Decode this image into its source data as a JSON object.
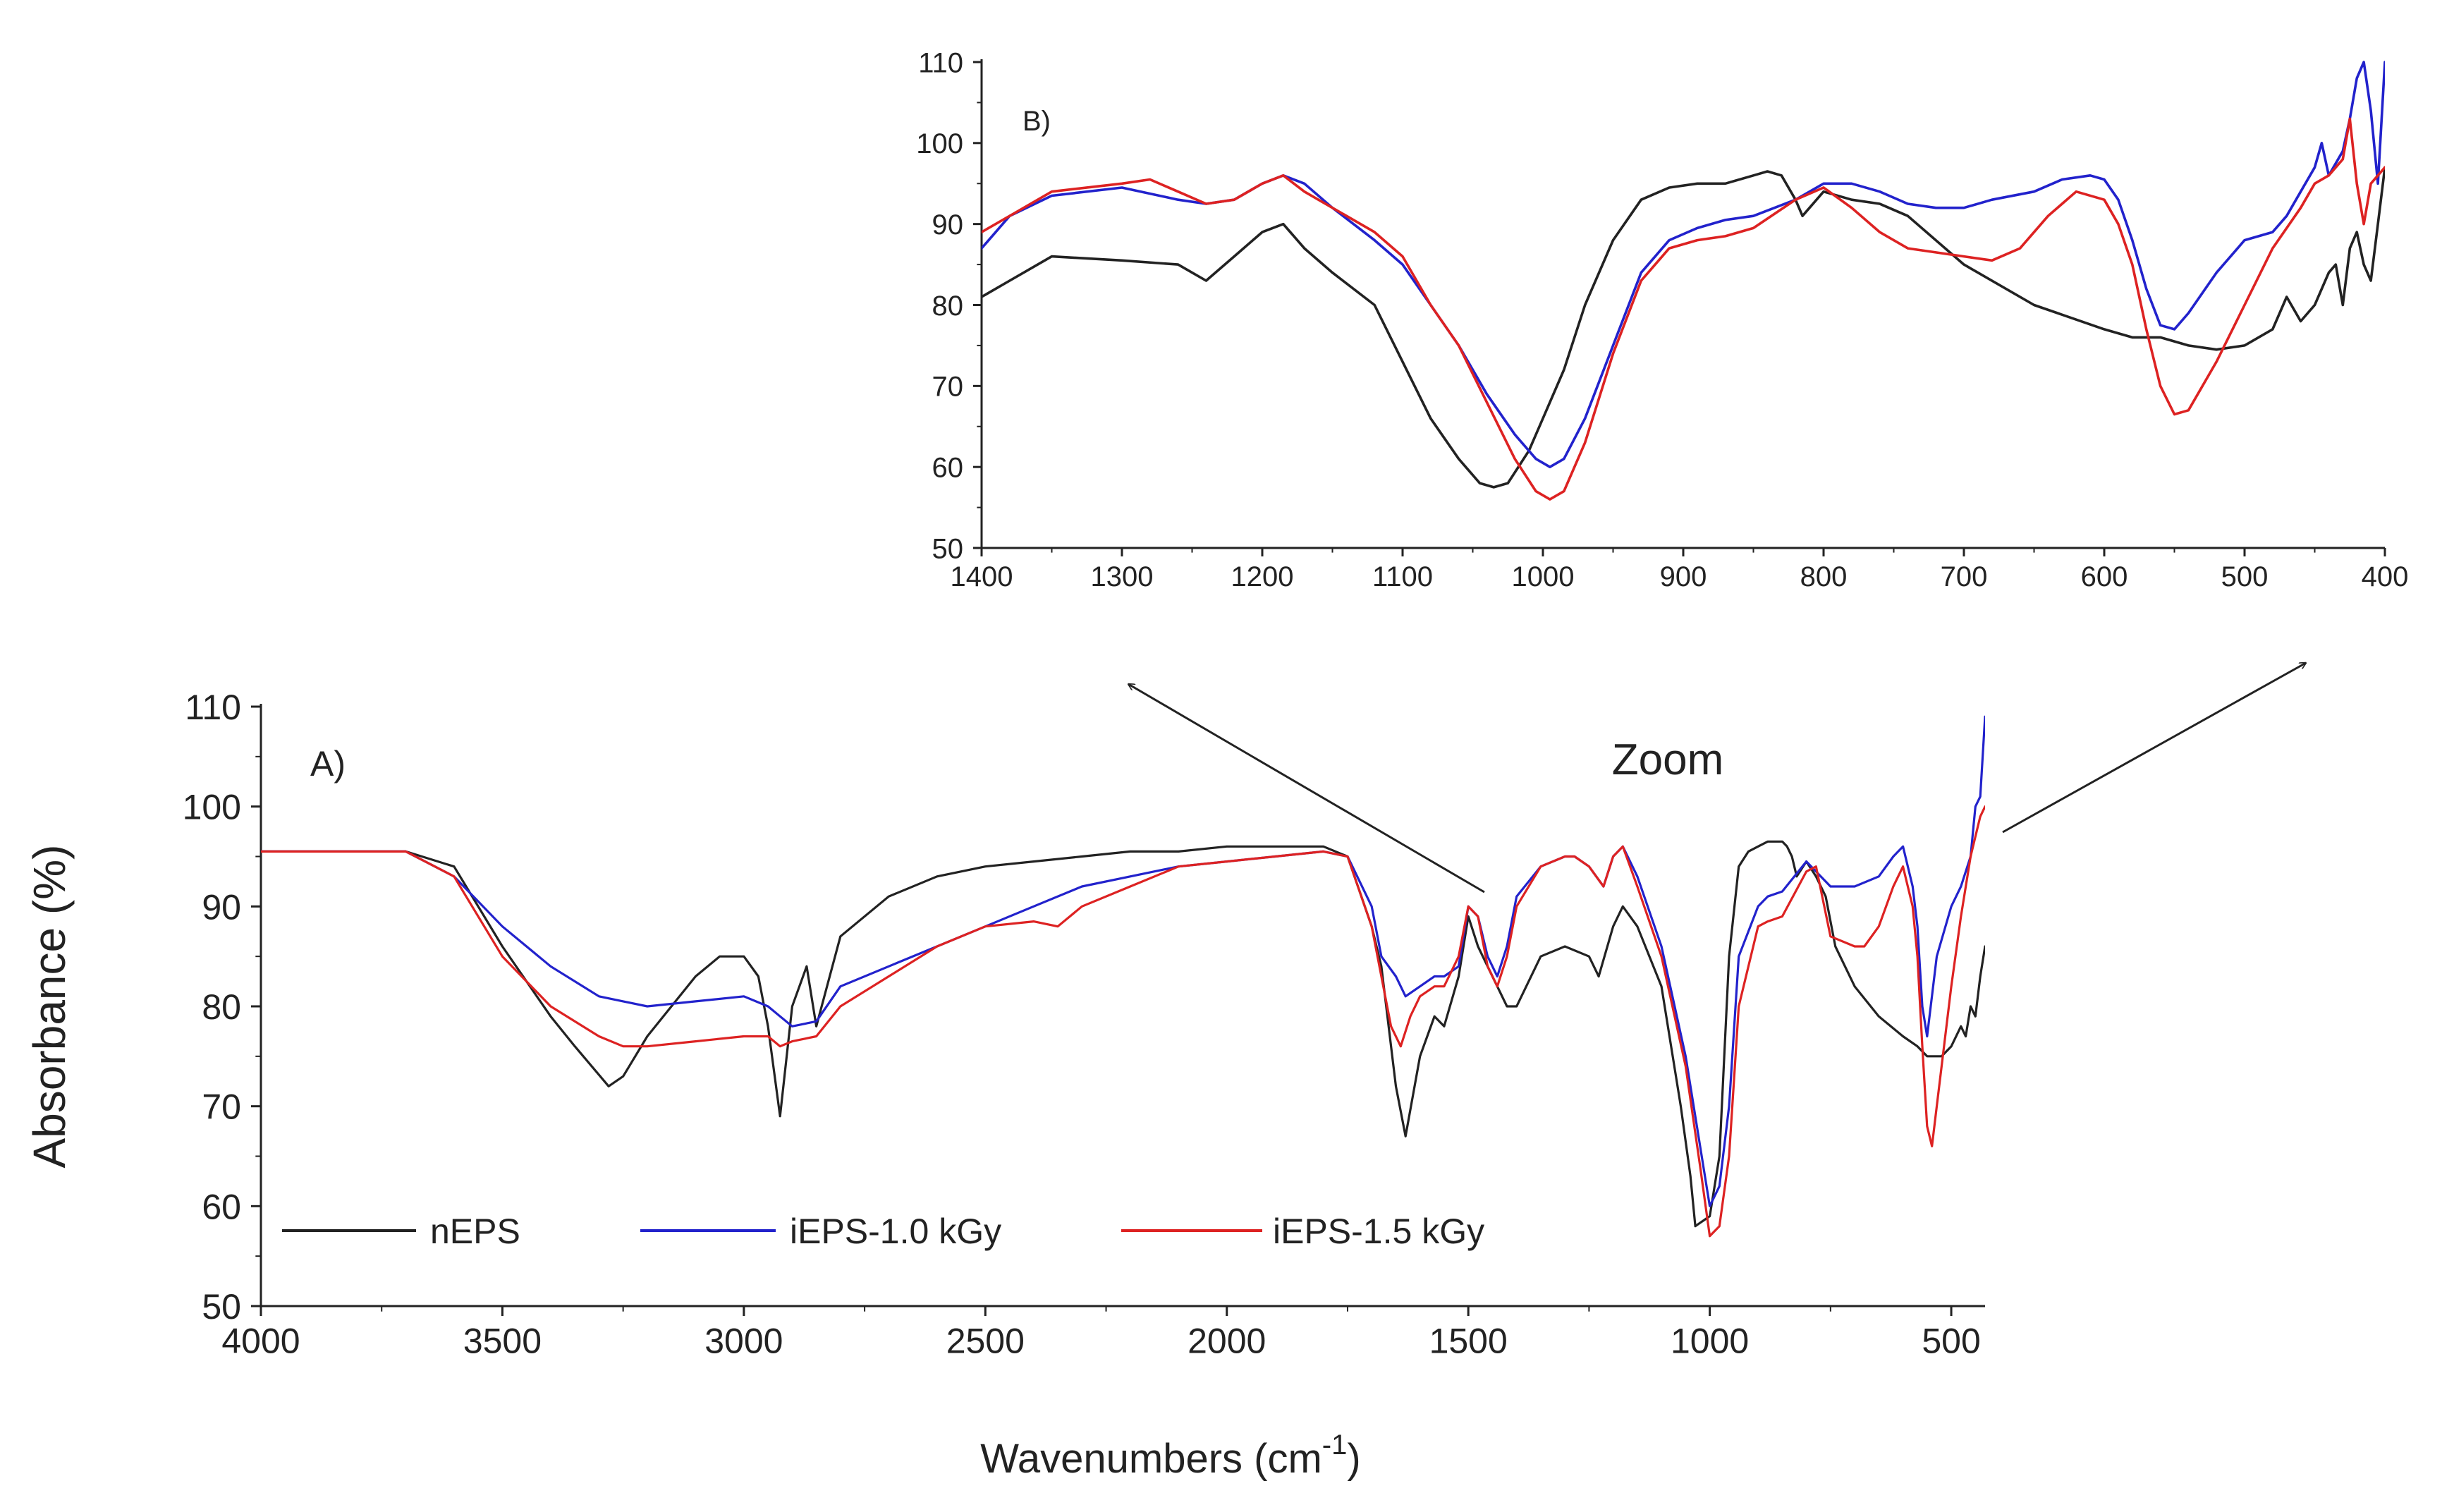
{
  "figure": {
    "zoom_label": "Zoom"
  },
  "chart_data": [
    {
      "id": "A",
      "type": "line",
      "panel_label": "A)",
      "title": "",
      "xlabel": "Wavenumbers (cm",
      "xlabel_superscript": "-1",
      "xlabel_close": ")",
      "ylabel": "Absorbance (%)",
      "xlim": [
        4000,
        430
      ],
      "ylim": [
        50,
        110
      ],
      "xticks": [
        4000,
        3500,
        3000,
        2500,
        2000,
        1500,
        1000,
        500
      ],
      "yticks": [
        50,
        60,
        70,
        80,
        90,
        100,
        110
      ],
      "legend_position": "bottom-left",
      "series": [
        {
          "name": "nEPS",
          "color": "#222222",
          "x": [
            4000,
            3700,
            3600,
            3500,
            3400,
            3350,
            3280,
            3250,
            3200,
            3100,
            3050,
            3000,
            2970,
            2950,
            2925,
            2900,
            2870,
            2850,
            2800,
            2700,
            2600,
            2500,
            2400,
            2300,
            2200,
            2100,
            2000,
            1900,
            1800,
            1750,
            1700,
            1680,
            1650,
            1630,
            1600,
            1570,
            1550,
            1520,
            1500,
            1480,
            1450,
            1420,
            1400,
            1350,
            1300,
            1250,
            1230,
            1200,
            1180,
            1150,
            1100,
            1080,
            1060,
            1040,
            1030,
            1000,
            980,
            960,
            940,
            920,
            900,
            880,
            850,
            840,
            830,
            820,
            800,
            780,
            760,
            740,
            700,
            650,
            600,
            570,
            550,
            520,
            500,
            480,
            470,
            460,
            450,
            440,
            430
          ],
          "y": [
            95.5,
            95.5,
            94,
            86,
            79,
            76,
            72,
            73,
            77,
            83,
            85,
            85,
            83,
            78,
            69,
            80,
            84,
            78,
            87,
            91,
            93,
            94,
            94.5,
            95,
            95.5,
            95.5,
            96,
            96,
            96,
            95,
            88,
            84,
            72,
            67,
            75,
            79,
            78,
            83,
            89,
            86,
            83,
            80,
            80,
            85,
            86,
            85,
            83,
            88,
            90,
            88,
            82,
            76,
            70,
            63,
            58,
            59,
            65,
            85,
            94,
            95.5,
            96,
            96.5,
            96.5,
            96,
            95,
            93,
            94.5,
            93,
            91,
            86,
            82,
            79,
            77,
            76,
            75,
            75,
            76,
            78,
            77,
            80,
            79,
            83,
            86
          ]
        },
        {
          "name": "iEPS-1.0 kGy",
          "color": "#2222cc",
          "x": [
            4000,
            3700,
            3600,
            3500,
            3400,
            3300,
            3200,
            3100,
            3000,
            2950,
            2925,
            2900,
            2850,
            2800,
            2700,
            2600,
            2500,
            2400,
            2300,
            2200,
            2100,
            2000,
            1900,
            1800,
            1750,
            1700,
            1680,
            1650,
            1630,
            1600,
            1570,
            1550,
            1520,
            1500,
            1480,
            1460,
            1440,
            1420,
            1400,
            1350,
            1300,
            1280,
            1250,
            1220,
            1200,
            1180,
            1150,
            1100,
            1050,
            1020,
            1000,
            980,
            960,
            940,
            900,
            880,
            850,
            800,
            750,
            700,
            650,
            620,
            600,
            580,
            570,
            560,
            550,
            530,
            500,
            480,
            460,
            450,
            440,
            430
          ],
          "y": [
            95.5,
            95.5,
            93,
            88,
            84,
            81,
            80,
            80.5,
            81,
            80,
            79,
            78,
            78.5,
            82,
            84,
            86,
            88,
            90,
            92,
            93,
            94,
            94.5,
            95,
            95.5,
            95,
            90,
            85,
            83,
            81,
            82,
            83,
            83,
            84,
            90,
            89,
            85,
            83,
            86,
            91,
            94,
            95,
            95,
            94,
            92,
            95,
            96,
            93,
            86,
            75,
            66,
            60,
            62,
            70,
            85,
            90,
            91,
            91.5,
            94.5,
            92,
            92,
            93,
            95,
            96,
            92,
            88,
            80,
            77,
            85,
            90,
            92,
            95,
            100,
            101,
            109
          ]
        },
        {
          "name": "iEPS-1.5 kGy",
          "color": "#dd2222",
          "x": [
            4000,
            3700,
            3600,
            3500,
            3400,
            3300,
            3250,
            3200,
            3100,
            3000,
            2950,
            2925,
            2900,
            2850,
            2800,
            2700,
            2600,
            2500,
            2400,
            2350,
            2300,
            2200,
            2100,
            2000,
            1900,
            1800,
            1750,
            1700,
            1680,
            1660,
            1640,
            1620,
            1600,
            1570,
            1550,
            1520,
            1500,
            1480,
            1460,
            1440,
            1420,
            1400,
            1350,
            1300,
            1280,
            1250,
            1220,
            1200,
            1180,
            1150,
            1100,
            1050,
            1020,
            1000,
            980,
            960,
            940,
            900,
            880,
            850,
            800,
            780,
            750,
            700,
            680,
            650,
            620,
            600,
            580,
            570,
            560,
            550,
            540,
            530,
            500,
            480,
            460,
            450,
            440,
            430
          ],
          "y": [
            95.5,
            95.5,
            93,
            85,
            80,
            77,
            76,
            76,
            76.5,
            77,
            77,
            76,
            76.5,
            77,
            80,
            83,
            86,
            88,
            88.5,
            88,
            90,
            92,
            94,
            94.5,
            95,
            95.5,
            95,
            88,
            83,
            78,
            76,
            79,
            81,
            82,
            82,
            85,
            90,
            89,
            84,
            82,
            85,
            90,
            94,
            95,
            95,
            94,
            92,
            95,
            96,
            92,
            85,
            74,
            64,
            57,
            58,
            65,
            80,
            88,
            88.5,
            89,
            93.5,
            94,
            87,
            86,
            86,
            88,
            92,
            94,
            90,
            85,
            76,
            68,
            66,
            70,
            82,
            89,
            95,
            97,
            99,
            100
          ]
        }
      ]
    },
    {
      "id": "B",
      "type": "line",
      "panel_label": "B)",
      "title": "",
      "xlabel": "",
      "ylabel": "",
      "xlim": [
        1400,
        400
      ],
      "ylim": [
        50,
        110
      ],
      "xticks": [
        1400,
        1300,
        1200,
        1100,
        1000,
        900,
        800,
        700,
        600,
        500,
        400
      ],
      "yticks": [
        50,
        60,
        70,
        80,
        90,
        100,
        110
      ],
      "series": [
        {
          "name": "nEPS",
          "color": "#222222",
          "x": [
            1400,
            1380,
            1350,
            1300,
            1260,
            1240,
            1220,
            1200,
            1185,
            1170,
            1150,
            1120,
            1100,
            1080,
            1060,
            1045,
            1035,
            1025,
            1010,
            1000,
            985,
            970,
            950,
            930,
            910,
            890,
            870,
            850,
            840,
            830,
            820,
            815,
            800,
            780,
            760,
            740,
            700,
            650,
            600,
            580,
            560,
            540,
            520,
            500,
            490,
            480,
            470,
            460,
            450,
            440,
            435,
            430,
            425,
            420,
            415,
            410,
            405,
            400
          ],
          "y": [
            81,
            83,
            86,
            85.5,
            85,
            83,
            86,
            89,
            90,
            87,
            84,
            80,
            73,
            66,
            61,
            58,
            57.5,
            58,
            62,
            66,
            72,
            80,
            88,
            93,
            94.5,
            95,
            95,
            96,
            96.5,
            96,
            93,
            91,
            94,
            93,
            92.5,
            91,
            85,
            80,
            77,
            76,
            76,
            75,
            74.5,
            75,
            76,
            77,
            81,
            78,
            80,
            84,
            85,
            80,
            87,
            89,
            85,
            83,
            90,
            97
          ]
        },
        {
          "name": "iEPS-1.0 kGy",
          "color": "#2222cc",
          "x": [
            1400,
            1380,
            1350,
            1300,
            1260,
            1240,
            1220,
            1200,
            1185,
            1170,
            1150,
            1120,
            1100,
            1080,
            1060,
            1040,
            1020,
            1005,
            995,
            985,
            970,
            950,
            930,
            910,
            890,
            870,
            850,
            820,
            800,
            780,
            760,
            740,
            720,
            700,
            680,
            650,
            630,
            610,
            600,
            590,
            580,
            570,
            560,
            550,
            540,
            520,
            500,
            480,
            470,
            460,
            450,
            445,
            440,
            430,
            425,
            420,
            415,
            410,
            405,
            400
          ],
          "y": [
            87,
            91,
            93.5,
            94.5,
            93,
            92.5,
            93,
            95,
            96,
            95,
            92,
            88,
            85,
            80,
            75,
            69,
            64,
            61,
            60,
            61,
            66,
            75,
            84,
            88,
            89.5,
            90.5,
            91,
            93,
            95,
            95,
            94,
            92.5,
            92,
            92,
            93,
            94,
            95.5,
            96,
            95.5,
            93,
            88,
            82,
            77.5,
            77,
            79,
            84,
            88,
            89,
            91,
            94,
            97,
            100,
            96,
            99,
            103,
            108,
            110,
            104,
            95,
            110
          ]
        },
        {
          "name": "iEPS-1.5 kGy",
          "color": "#dd2222",
          "x": [
            1400,
            1380,
            1350,
            1300,
            1280,
            1260,
            1240,
            1220,
            1200,
            1185,
            1170,
            1150,
            1120,
            1100,
            1080,
            1060,
            1040,
            1020,
            1005,
            995,
            985,
            970,
            950,
            930,
            910,
            890,
            870,
            850,
            820,
            800,
            780,
            760,
            740,
            720,
            700,
            680,
            660,
            640,
            620,
            600,
            590,
            580,
            570,
            560,
            550,
            540,
            520,
            500,
            480,
            460,
            450,
            440,
            430,
            425,
            420,
            415,
            410,
            405,
            400
          ],
          "y": [
            89,
            91,
            94,
            95,
            95.5,
            94,
            92.5,
            93,
            95,
            96,
            94,
            92,
            89,
            86,
            80,
            75,
            68,
            61,
            57,
            56,
            57,
            63,
            74,
            83,
            87,
            88,
            88.5,
            89.5,
            93,
            94.5,
            92,
            89,
            87,
            86.5,
            86,
            85.5,
            87,
            91,
            94,
            93,
            90,
            85,
            77,
            70,
            66.5,
            67,
            73,
            80,
            87,
            92,
            95,
            96,
            98,
            103,
            95,
            90,
            95,
            96,
            97
          ]
        }
      ]
    }
  ]
}
